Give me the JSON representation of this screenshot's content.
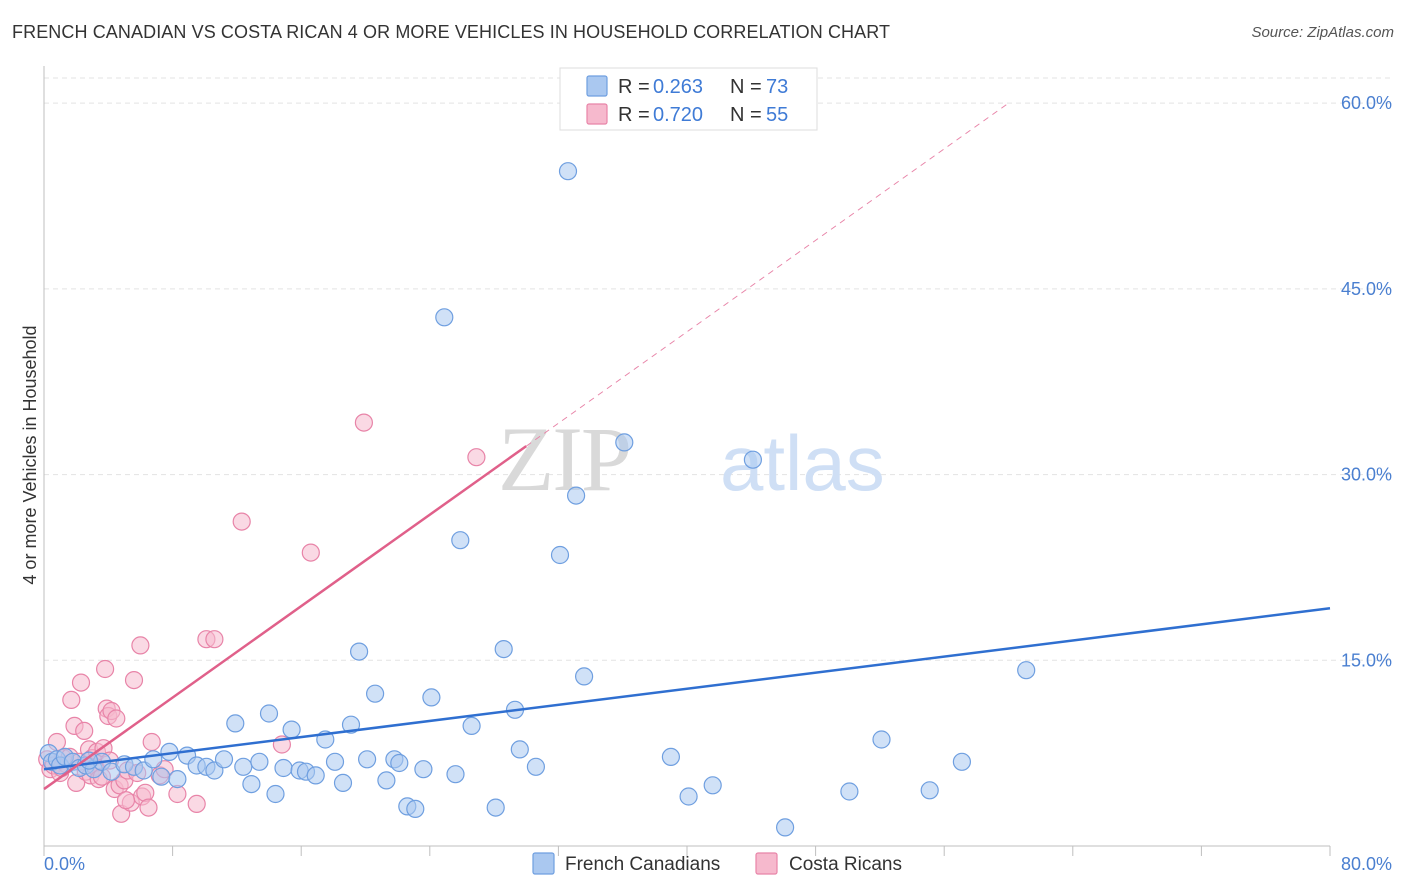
{
  "header": {
    "title": "FRENCH CANADIAN VS COSTA RICAN 4 OR MORE VEHICLES IN HOUSEHOLD CORRELATION CHART",
    "source": "Source: ZipAtlas.com"
  },
  "watermark": {
    "zip": "ZIP",
    "atlas": "atlas"
  },
  "colors": {
    "blue_fill": "#aac8f0",
    "blue_stroke": "#6f9fe0",
    "blue_line": "#2f6fd0",
    "pink_fill": "#f6b9cd",
    "pink_stroke": "#e884a8",
    "pink_line": "#e0608a",
    "grid": "#e3e3e3",
    "axis_text": "#4a7fd0"
  },
  "legend": {
    "rows": [
      {
        "r_label": "R = ",
        "r_value": "0.263",
        "n_label": "N = ",
        "n_value": "73"
      },
      {
        "r_label": "R = ",
        "r_value": "0.720",
        "n_label": "N = ",
        "n_value": "55"
      }
    ]
  },
  "chart_data": {
    "type": "scatter",
    "title": "FRENCH CANADIAN VS COSTA RICAN 4 OR MORE VEHICLES IN HOUSEHOLD CORRELATION CHART",
    "xlabel": "",
    "ylabel": "4 or more Vehicles in Household",
    "xlim": [
      0,
      80
    ],
    "ylim": [
      0,
      63
    ],
    "x_tick_labels": [
      "0.0%",
      "80.0%"
    ],
    "y_ticks": [
      15,
      30,
      45,
      60
    ],
    "y_tick_labels": [
      "15.0%",
      "30.0%",
      "45.0%",
      "60.0%"
    ],
    "legend_position": "top-center",
    "series": [
      {
        "name": "French Canadians",
        "R": 0.263,
        "N": 73,
        "trend": {
          "x": [
            0,
            80
          ],
          "y": [
            6.2,
            19.2
          ],
          "dashed_x": null
        },
        "points": [
          [
            0.3,
            7.5
          ],
          [
            0.5,
            6.8
          ],
          [
            0.8,
            7.0
          ],
          [
            1.0,
            6.5
          ],
          [
            1.3,
            7.2
          ],
          [
            1.8,
            6.8
          ],
          [
            2.2,
            6.3
          ],
          [
            2.6,
            6.5
          ],
          [
            3.1,
            6.2
          ],
          [
            3.6,
            6.8
          ],
          [
            4.2,
            6.0
          ],
          [
            5.0,
            6.6
          ],
          [
            5.6,
            6.4
          ],
          [
            6.2,
            6.1
          ],
          [
            6.8,
            7.0
          ],
          [
            7.3,
            5.6
          ],
          [
            7.8,
            7.6
          ],
          [
            8.3,
            5.4
          ],
          [
            8.9,
            7.3
          ],
          [
            9.5,
            6.5
          ],
          [
            10.1,
            6.4
          ],
          [
            10.6,
            6.1
          ],
          [
            11.2,
            7.0
          ],
          [
            11.9,
            9.9
          ],
          [
            12.4,
            6.4
          ],
          [
            12.9,
            5.0
          ],
          [
            13.4,
            6.8
          ],
          [
            14.0,
            10.7
          ],
          [
            14.4,
            4.2
          ],
          [
            14.9,
            6.3
          ],
          [
            15.4,
            9.4
          ],
          [
            15.9,
            6.1
          ],
          [
            16.3,
            6.0
          ],
          [
            16.9,
            5.7
          ],
          [
            17.5,
            8.6
          ],
          [
            18.1,
            6.8
          ],
          [
            18.6,
            5.1
          ],
          [
            19.1,
            9.8
          ],
          [
            19.6,
            15.7
          ],
          [
            20.1,
            7.0
          ],
          [
            20.6,
            12.3
          ],
          [
            21.3,
            5.3
          ],
          [
            21.8,
            7.0
          ],
          [
            22.1,
            6.7
          ],
          [
            22.6,
            3.2
          ],
          [
            23.1,
            3.0
          ],
          [
            23.6,
            6.2
          ],
          [
            24.1,
            12.0
          ],
          [
            24.9,
            42.7
          ],
          [
            25.6,
            5.8
          ],
          [
            25.9,
            24.7
          ],
          [
            26.6,
            9.7
          ],
          [
            28.1,
            3.1
          ],
          [
            28.6,
            15.9
          ],
          [
            29.3,
            11.0
          ],
          [
            29.6,
            7.8
          ],
          [
            30.6,
            6.4
          ],
          [
            32.1,
            23.5
          ],
          [
            32.6,
            54.5
          ],
          [
            33.1,
            28.3
          ],
          [
            33.6,
            13.7
          ],
          [
            36.1,
            32.6
          ],
          [
            39.0,
            7.2
          ],
          [
            40.1,
            4.0
          ],
          [
            41.6,
            4.9
          ],
          [
            44.1,
            31.2
          ],
          [
            46.1,
            1.5
          ],
          [
            50.1,
            4.4
          ],
          [
            52.1,
            8.6
          ],
          [
            55.1,
            4.5
          ],
          [
            57.1,
            6.8
          ],
          [
            61.1,
            14.2
          ],
          [
            2.8,
            6.9
          ]
        ]
      },
      {
        "name": "Costa Ricans",
        "R": 0.72,
        "N": 55,
        "trend": {
          "x": [
            0,
            30
          ],
          "y": [
            4.6,
            32.3
          ],
          "dashed_x": [
            30,
            60
          ],
          "dashed_y": [
            32.3,
            60.0
          ]
        },
        "points": [
          [
            0.2,
            7.0
          ],
          [
            0.4,
            6.2
          ],
          [
            0.6,
            6.5
          ],
          [
            0.8,
            8.4
          ],
          [
            1.0,
            5.9
          ],
          [
            1.2,
            7.1
          ],
          [
            1.4,
            6.6
          ],
          [
            1.6,
            7.2
          ],
          [
            1.7,
            11.8
          ],
          [
            1.9,
            9.7
          ],
          [
            2.0,
            5.1
          ],
          [
            2.2,
            6.8
          ],
          [
            2.3,
            13.2
          ],
          [
            2.5,
            9.3
          ],
          [
            2.6,
            6.0
          ],
          [
            2.8,
            7.8
          ],
          [
            2.9,
            5.7
          ],
          [
            3.0,
            7.1
          ],
          [
            3.2,
            6.4
          ],
          [
            3.3,
            7.6
          ],
          [
            3.4,
            5.4
          ],
          [
            3.6,
            5.6
          ],
          [
            3.7,
            7.9
          ],
          [
            3.8,
            14.3
          ],
          [
            3.9,
            11.1
          ],
          [
            4.0,
            10.5
          ],
          [
            4.1,
            6.9
          ],
          [
            4.2,
            10.9
          ],
          [
            4.4,
            4.6
          ],
          [
            4.5,
            10.3
          ],
          [
            4.7,
            4.9
          ],
          [
            4.8,
            2.6
          ],
          [
            5.0,
            5.3
          ],
          [
            5.2,
            6.1
          ],
          [
            5.4,
            3.5
          ],
          [
            5.6,
            13.4
          ],
          [
            5.8,
            5.9
          ],
          [
            6.0,
            16.2
          ],
          [
            6.1,
            4.0
          ],
          [
            6.3,
            4.3
          ],
          [
            6.5,
            3.1
          ],
          [
            6.7,
            8.4
          ],
          [
            7.2,
            5.7
          ],
          [
            7.5,
            6.2
          ],
          [
            8.3,
            4.2
          ],
          [
            9.5,
            3.4
          ],
          [
            10.1,
            16.7
          ],
          [
            10.6,
            16.7
          ],
          [
            12.3,
            26.2
          ],
          [
            14.8,
            8.2
          ],
          [
            16.6,
            23.7
          ],
          [
            19.9,
            34.2
          ],
          [
            26.9,
            31.4
          ],
          [
            5.1,
            3.7
          ],
          [
            1.1,
            6.3
          ]
        ]
      }
    ]
  },
  "bottom_legend": {
    "items": [
      "French Canadians",
      "Costa Ricans"
    ]
  }
}
